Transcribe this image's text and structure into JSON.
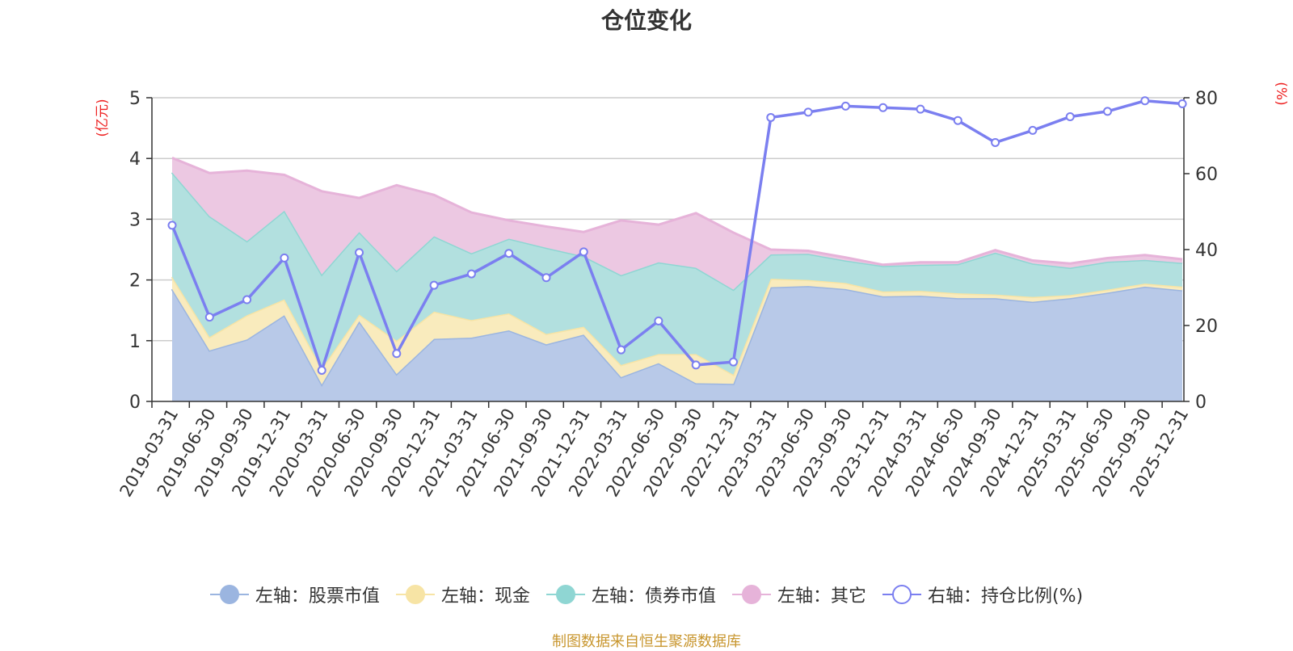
{
  "title": "仓位变化",
  "source_note": "制图数据来自恒生聚源数据库",
  "chart_data": {
    "type": "area",
    "categories": [
      "2019-03-31",
      "2019-06-30",
      "2019-09-30",
      "2019-12-31",
      "2020-03-31",
      "2020-06-30",
      "2020-09-30",
      "2020-12-31",
      "2021-03-31",
      "2021-06-30",
      "2021-09-30",
      "2021-12-31",
      "2022-03-31",
      "2022-06-30",
      "2022-09-30",
      "2022-12-31",
      "2023-03-31",
      "2023-06-30",
      "2023-09-30",
      "2023-12-31",
      "2024-03-31",
      "2024-06-30",
      "2024-09-30",
      "2024-12-31",
      "2025-03-31",
      "2025-06-30",
      "2025-09-30",
      "2025-12-31"
    ],
    "x_tick_labels": [
      "2019-03-31",
      "2019-06-30",
      "2019-09-30",
      "2019-12-31",
      "2020-03-31",
      "2020-06-30",
      "2020-09-30",
      "2020-12-31",
      "2021-03-31",
      "2021-06-30",
      "2021-09-30",
      "2021-12-31",
      "2022-03-31",
      "2022-06-30",
      "2022-09-30",
      "2022-12-31",
      "2023-03-31",
      "2023-06-30",
      "2023-09-30",
      "2023-12-31",
      "2024-03-31",
      "2024-06-30",
      "2024-09-30",
      "2024-12-31",
      "2025-03-31",
      "2025-06-30",
      "2025-09-30",
      "2025-12-31"
    ],
    "y_left": {
      "label": "(亿元)",
      "ylim": [
        0,
        5
      ],
      "ticks": [
        "0",
        "1",
        "2",
        "3",
        "4",
        "5"
      ]
    },
    "y_right": {
      "label": "(%)",
      "ylim": [
        0,
        80
      ],
      "ticks": [
        "0",
        "20",
        "40",
        "60",
        "80"
      ]
    },
    "stacked": true,
    "grid": true,
    "legend_position": "bottom",
    "series": [
      {
        "name": "左轴：股票市值",
        "axis": "left",
        "kind": "area",
        "color": "#9bb5e0",
        "values": [
          1.85,
          0.84,
          1.02,
          1.42,
          0.28,
          1.32,
          0.45,
          1.03,
          1.05,
          1.17,
          0.94,
          1.1,
          0.4,
          0.63,
          0.3,
          0.29,
          1.88,
          1.9,
          1.85,
          1.73,
          1.74,
          1.7,
          1.7,
          1.64,
          1.7,
          1.79,
          1.89,
          1.83
        ]
      },
      {
        "name": "左轴：现金",
        "axis": "left",
        "kind": "area",
        "color": "#f7e4a5",
        "values": [
          0.2,
          0.22,
          0.4,
          0.26,
          0.26,
          0.11,
          0.55,
          0.45,
          0.29,
          0.28,
          0.17,
          0.13,
          0.2,
          0.15,
          0.48,
          0.15,
          0.14,
          0.1,
          0.1,
          0.08,
          0.08,
          0.08,
          0.06,
          0.08,
          0.05,
          0.05,
          0.05,
          0.06
        ]
      },
      {
        "name": "左轴：债券市值",
        "axis": "left",
        "kind": "area",
        "color": "#8fd6d3",
        "values": [
          1.72,
          1.99,
          1.22,
          1.46,
          1.55,
          1.36,
          1.15,
          1.24,
          1.1,
          1.23,
          1.42,
          1.16,
          1.48,
          1.51,
          1.42,
          1.4,
          0.4,
          0.43,
          0.37,
          0.42,
          0.43,
          0.48,
          0.69,
          0.55,
          0.45,
          0.46,
          0.39,
          0.39
        ]
      },
      {
        "name": "左轴：其它",
        "axis": "left",
        "kind": "area",
        "color": "#e6b3d9",
        "values": [
          0.24,
          0.71,
          1.16,
          0.59,
          1.37,
          0.56,
          1.41,
          0.68,
          0.67,
          0.3,
          0.35,
          0.4,
          0.9,
          0.62,
          0.9,
          0.94,
          0.08,
          0.05,
          0.05,
          0.02,
          0.04,
          0.03,
          0.04,
          0.05,
          0.07,
          0.06,
          0.08,
          0.06
        ]
      },
      {
        "name": "右轴：持仓比例(%)",
        "axis": "right",
        "kind": "line",
        "color": "#7b7ff0",
        "values": [
          46.4,
          22.2,
          26.8,
          37.8,
          8.2,
          39.2,
          12.6,
          30.6,
          33.6,
          39.0,
          32.6,
          39.4,
          13.6,
          21.2,
          9.6,
          10.4,
          74.8,
          76.2,
          77.8,
          77.4,
          77.0,
          74.0,
          68.2,
          71.4,
          75.0,
          76.4,
          79.2,
          78.4
        ]
      }
    ]
  }
}
